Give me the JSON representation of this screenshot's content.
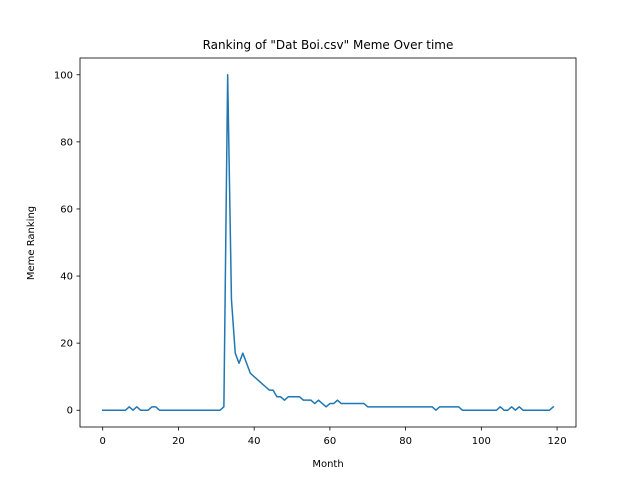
{
  "chart_data": {
    "type": "line",
    "title": "Ranking of \"Dat Boi.csv\" Meme Over time",
    "xlabel": "Month",
    "ylabel": "Meme Ranking",
    "xlim": [
      -6,
      125
    ],
    "ylim": [
      -5,
      105
    ],
    "xticks": [
      0,
      20,
      40,
      60,
      80,
      100,
      120
    ],
    "yticks": [
      0,
      20,
      40,
      60,
      80,
      100
    ],
    "grid": false,
    "series": [
      {
        "color": "#1f77b4",
        "x": [
          0,
          1,
          2,
          3,
          4,
          5,
          6,
          7,
          8,
          9,
          10,
          11,
          12,
          13,
          14,
          15,
          16,
          17,
          18,
          19,
          20,
          21,
          22,
          23,
          24,
          25,
          26,
          27,
          28,
          29,
          30,
          31,
          32,
          33,
          34,
          35,
          36,
          37,
          38,
          39,
          40,
          41,
          42,
          43,
          44,
          45,
          46,
          47,
          48,
          49,
          50,
          51,
          52,
          53,
          54,
          55,
          56,
          57,
          58,
          59,
          60,
          61,
          62,
          63,
          64,
          65,
          66,
          67,
          68,
          69,
          70,
          71,
          72,
          73,
          74,
          75,
          76,
          77,
          78,
          79,
          80,
          81,
          82,
          83,
          84,
          85,
          86,
          87,
          88,
          89,
          90,
          91,
          92,
          93,
          94,
          95,
          96,
          97,
          98,
          99,
          100,
          101,
          102,
          103,
          104,
          105,
          106,
          107,
          108,
          109,
          110,
          111,
          112,
          113,
          114,
          115,
          116,
          117,
          118,
          119
        ],
        "y": [
          0,
          0,
          0,
          0,
          0,
          0,
          0,
          1,
          0,
          1,
          0,
          0,
          0,
          1,
          1,
          0,
          0,
          0,
          0,
          0,
          0,
          0,
          0,
          0,
          0,
          0,
          0,
          0,
          0,
          0,
          0,
          0,
          1,
          100,
          33,
          17,
          14,
          17,
          14,
          11,
          10,
          9,
          8,
          7,
          6,
          6,
          4,
          4,
          3,
          4,
          4,
          4,
          4,
          3,
          3,
          3,
          2,
          3,
          2,
          1,
          2,
          2,
          3,
          2,
          2,
          2,
          2,
          2,
          2,
          2,
          1,
          1,
          1,
          1,
          1,
          1,
          1,
          1,
          1,
          1,
          1,
          1,
          1,
          1,
          1,
          1,
          1,
          1,
          0,
          1,
          1,
          1,
          1,
          1,
          1,
          0,
          0,
          0,
          0,
          0,
          0,
          0,
          0,
          0,
          0,
          1,
          0,
          0,
          1,
          0,
          1,
          0,
          0,
          0,
          0,
          0,
          0,
          0,
          0,
          1
        ]
      }
    ]
  }
}
